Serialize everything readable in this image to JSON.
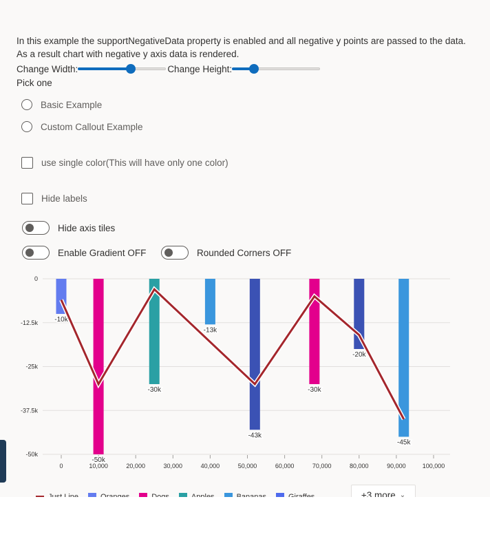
{
  "description": "In this example the supportNegativeData property is enabled and all negative y points are passed to the data. As a result chart with negative y axis data is rendered.",
  "controls": {
    "width_label": "Change Width:",
    "width_value": 0.6,
    "height_label": "Change Height:",
    "height_value": 0.25,
    "pick_label": "Pick one",
    "radio_options": [
      "Basic Example",
      "Custom Callout Example"
    ],
    "single_color_label": "use single color(This will have only one color)",
    "hide_labels_label": "Hide labels",
    "hide_axis_tiles_label": "Hide axis tiles",
    "gradient_label": "Enable Gradient OFF",
    "rounded_label": "Rounded Corners OFF"
  },
  "legend": {
    "items": [
      {
        "name": "Just Line",
        "color": "#a4262c",
        "kind": "line"
      },
      {
        "name": "Oranges",
        "color": "#637cef",
        "kind": "bar"
      },
      {
        "name": "Dogs",
        "color": "#e3008c",
        "kind": "bar"
      },
      {
        "name": "Apples",
        "color": "#2aa0a4",
        "kind": "bar"
      },
      {
        "name": "Bananas",
        "color": "#3a96dd",
        "kind": "bar"
      },
      {
        "name": "Giraffes",
        "color": "#4f6bed",
        "kind": "bar"
      }
    ],
    "more_label": "+3 more",
    "more_icon": "chevron-down-icon"
  },
  "chart_data": {
    "type": "bar",
    "x_ticks": [
      "0",
      "10,000",
      "20,000",
      "30,000",
      "40,000",
      "50,000",
      "60,000",
      "70,000",
      "80,000",
      "90,000",
      "100,000"
    ],
    "y_ticks": [
      "0",
      "-12.5k",
      "-25k",
      "-37.5k",
      "-50k"
    ],
    "xlim": [
      0,
      100000
    ],
    "ylim": [
      -50000,
      0
    ],
    "grid": true,
    "bars": [
      {
        "x": 0,
        "y": -10000,
        "label": "-10k",
        "color": "#637cef"
      },
      {
        "x": 10000,
        "y": -50000,
        "label": "-50k",
        "color": "#e3008c"
      },
      {
        "x": 25000,
        "y": -30000,
        "label": "-30k",
        "color": "#2aa0a4"
      },
      {
        "x": 40000,
        "y": -13000,
        "label": "-13k",
        "color": "#3a96dd"
      },
      {
        "x": 52000,
        "y": -43000,
        "label": "-43k",
        "color": "#3b52b4"
      },
      {
        "x": 68000,
        "y": -30000,
        "label": "-30k",
        "color": "#e3008c"
      },
      {
        "x": 80000,
        "y": -20000,
        "label": "-20k",
        "color": "#3b52b4"
      },
      {
        "x": 92000,
        "y": -45000,
        "label": "-45k",
        "color": "#3a96dd"
      }
    ],
    "line": {
      "name": "Just Line",
      "color": "#a4262c",
      "points": [
        {
          "x": 0,
          "y": -6000
        },
        {
          "x": 10000,
          "y": -30000
        },
        {
          "x": 25000,
          "y": -3000
        },
        {
          "x": 52000,
          "y": -30000
        },
        {
          "x": 68000,
          "y": -5000
        },
        {
          "x": 80000,
          "y": -16000
        },
        {
          "x": 92000,
          "y": -40000
        }
      ]
    }
  }
}
